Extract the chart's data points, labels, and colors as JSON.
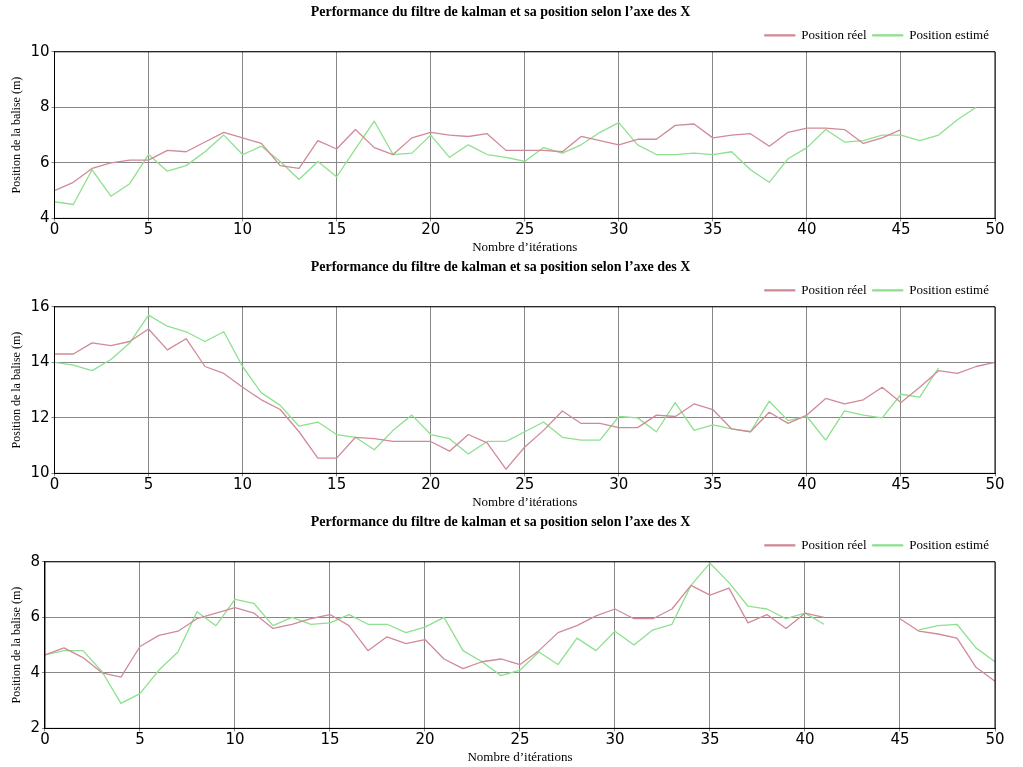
{
  "chart_data": [
    {
      "type": "line",
      "title": "Performance du filtre de kalman et sa position selon l’axe des X",
      "xlabel": "Nombre d’itérations",
      "ylabel": "Position de la balise (m)",
      "x": [
        0,
        1,
        2,
        3,
        4,
        5,
        6,
        7,
        8,
        9,
        10,
        11,
        12,
        13,
        14,
        15,
        16,
        17,
        18,
        19,
        20,
        21,
        22,
        23,
        24,
        25,
        26,
        27,
        28,
        29,
        30,
        31,
        32,
        33,
        34,
        35,
        36,
        37,
        38,
        39,
        40,
        41,
        42,
        43,
        44,
        45,
        46,
        47,
        48,
        49
      ],
      "xlim": [
        0,
        50
      ],
      "xticks": [
        0,
        5,
        10,
        15,
        20,
        25,
        30,
        35,
        40,
        45,
        50
      ],
      "ylim": [
        4,
        10
      ],
      "yticks": [
        4,
        6,
        8,
        10
      ],
      "grid": true,
      "legend": "top right",
      "marker": "none",
      "line_style": "solid",
      "series": [
        {
          "name": "Position réel",
          "color": "#d08a98",
          "values": [
            5.0,
            5.3,
            5.8,
            6.0,
            6.1,
            6.1,
            6.45,
            6.4,
            6.75,
            7.1,
            6.9,
            6.7,
            5.9,
            5.8,
            6.8,
            6.5,
            7.2,
            6.55,
            6.3,
            6.9,
            7.1,
            7.0,
            6.95,
            7.05,
            6.45,
            6.45,
            6.45,
            6.4,
            6.95,
            6.8,
            6.65,
            6.85,
            6.85,
            7.35,
            7.4,
            6.9,
            7.0,
            7.05,
            6.6,
            7.1,
            7.25,
            7.25,
            7.2,
            6.7,
            6.9,
            7.2,
            null,
            null,
            null,
            null
          ]
        },
        {
          "name": "Position estimé",
          "color": "#8ee08e",
          "values": [
            4.6,
            4.5,
            5.75,
            4.8,
            5.25,
            6.3,
            5.7,
            5.9,
            6.4,
            7.0,
            6.3,
            6.6,
            6.05,
            5.4,
            6.05,
            5.5,
            6.5,
            7.5,
            6.3,
            6.35,
            7.0,
            6.2,
            6.65,
            6.3,
            6.2,
            6.05,
            6.55,
            6.35,
            6.65,
            7.1,
            7.45,
            6.65,
            6.3,
            6.3,
            6.35,
            6.3,
            6.4,
            5.75,
            5.3,
            6.15,
            6.55,
            7.2,
            6.75,
            6.8,
            7.0,
            7.0,
            6.8,
            7.0,
            7.55,
            8.0
          ]
        }
      ]
    },
    {
      "type": "line",
      "title": "Performance du filtre de kalman et sa position selon l’axe des X",
      "xlabel": "Nombre d’itérations",
      "ylabel": "Position de la balise (m)",
      "x": [
        0,
        1,
        2,
        3,
        4,
        5,
        6,
        7,
        8,
        9,
        10,
        11,
        12,
        13,
        14,
        15,
        16,
        17,
        18,
        19,
        20,
        21,
        22,
        23,
        24,
        25,
        26,
        27,
        28,
        29,
        30,
        31,
        32,
        33,
        34,
        35,
        36,
        37,
        38,
        39,
        40,
        41,
        42,
        43,
        44,
        45,
        46,
        47,
        48,
        49,
        50
      ],
      "xlim": [
        0,
        50
      ],
      "xticks": [
        0,
        5,
        10,
        15,
        20,
        25,
        30,
        35,
        40,
        45,
        50
      ],
      "ylim": [
        10,
        16
      ],
      "yticks": [
        10,
        12,
        14,
        16
      ],
      "grid": true,
      "legend": "top right",
      "marker": "none",
      "line_style": "solid",
      "series": [
        {
          "name": "Position réel",
          "color": "#d08a98",
          "values": [
            14.3,
            14.3,
            14.7,
            14.6,
            14.75,
            15.2,
            14.45,
            14.85,
            13.85,
            13.6,
            13.1,
            12.65,
            12.3,
            11.5,
            10.55,
            10.55,
            11.3,
            11.25,
            11.15,
            11.15,
            11.15,
            10.8,
            11.4,
            11.1,
            10.15,
            10.95,
            11.55,
            12.25,
            11.8,
            11.8,
            11.65,
            11.65,
            12.1,
            12.05,
            12.5,
            12.3,
            11.6,
            11.5,
            12.2,
            11.8,
            12.1,
            12.7,
            12.5,
            12.65,
            13.1,
            12.55,
            13.1,
            13.7,
            13.6,
            13.85,
            14.0
          ]
        },
        {
          "name": "Position estimé",
          "color": "#8ee08e",
          "values": [
            14.0,
            13.9,
            13.7,
            14.1,
            14.7,
            15.7,
            15.3,
            15.1,
            14.75,
            15.1,
            13.85,
            12.9,
            12.45,
            11.7,
            11.85,
            11.4,
            11.3,
            10.85,
            11.55,
            12.1,
            11.4,
            11.25,
            10.7,
            11.15,
            11.15,
            11.5,
            11.85,
            11.3,
            11.2,
            11.2,
            12.05,
            12.0,
            11.5,
            12.55,
            11.55,
            11.75,
            11.6,
            11.5,
            12.6,
            11.9,
            12.05,
            11.2,
            12.25,
            12.1,
            12.0,
            12.85,
            12.75,
            13.8,
            null,
            null,
            null
          ]
        }
      ]
    },
    {
      "type": "line",
      "title": "Performance du filtre de kalman et sa position selon l’axe des X",
      "xlabel": "Nombre d’itérations",
      "ylabel": "Position de la balise (m)",
      "x": [
        0,
        1,
        2,
        3,
        4,
        5,
        6,
        7,
        8,
        9,
        10,
        11,
        12,
        13,
        14,
        15,
        16,
        17,
        18,
        19,
        20,
        21,
        22,
        23,
        24,
        25,
        26,
        27,
        28,
        29,
        30,
        31,
        32,
        33,
        34,
        35,
        36,
        37,
        38,
        39,
        40,
        41,
        42,
        43,
        44,
        45,
        46,
        47,
        48,
        49,
        50
      ],
      "xlim": [
        0,
        50
      ],
      "xticks": [
        0,
        5,
        10,
        15,
        20,
        25,
        30,
        35,
        40,
        45,
        50
      ],
      "ylim": [
        2,
        8
      ],
      "yticks": [
        2,
        4,
        6,
        8
      ],
      "grid": true,
      "legend": "top right",
      "marker": "none",
      "line_style": "solid",
      "series": [
        {
          "name": "Position réel",
          "color": "#d08a98",
          "values": [
            4.65,
            4.9,
            4.55,
            4.0,
            3.85,
            4.95,
            5.35,
            5.5,
            5.95,
            6.15,
            6.35,
            6.15,
            5.6,
            5.75,
            5.95,
            6.1,
            5.7,
            4.8,
            5.3,
            5.05,
            5.2,
            4.5,
            4.15,
            4.4,
            4.5,
            4.3,
            4.8,
            5.45,
            5.7,
            6.05,
            6.3,
            5.95,
            5.95,
            6.3,
            7.15,
            6.8,
            7.05,
            5.8,
            6.1,
            5.6,
            6.15,
            6.0,
            null,
            null,
            null,
            5.95,
            5.5,
            5.4,
            5.25,
            4.2,
            3.7
          ]
        },
        {
          "name": "Position estimé",
          "color": "#8ee08e",
          "values": [
            4.65,
            4.8,
            4.8,
            4.05,
            2.9,
            3.25,
            4.1,
            4.75,
            6.2,
            5.7,
            6.65,
            6.5,
            5.7,
            6.0,
            5.75,
            5.8,
            6.1,
            5.75,
            5.75,
            5.45,
            5.65,
            6.0,
            4.8,
            4.4,
            3.9,
            4.1,
            4.75,
            4.3,
            5.25,
            4.8,
            5.5,
            5.0,
            5.55,
            5.75,
            7.15,
            7.95,
            7.25,
            6.4,
            6.3,
            5.95,
            6.15,
            5.75,
            null,
            null,
            null,
            null,
            5.55,
            5.7,
            5.75,
            4.9,
            4.4
          ]
        }
      ]
    }
  ]
}
